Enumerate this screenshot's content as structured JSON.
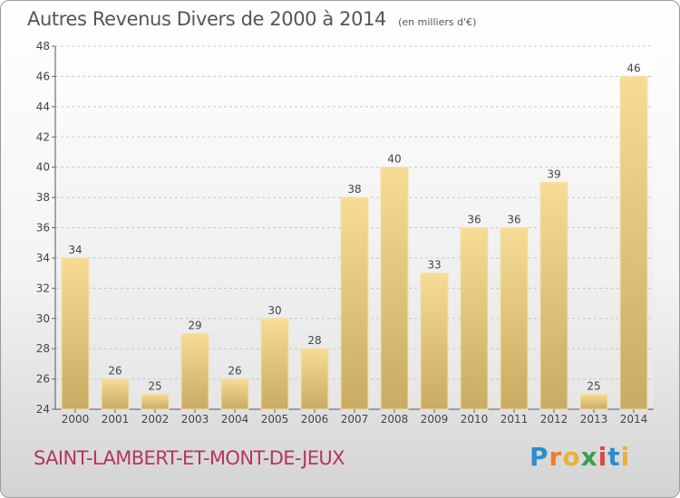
{
  "chart_data": {
    "type": "bar",
    "title": "Autres Revenus Divers de 2000 à 2014",
    "subtitle": "(en milliers d'€)",
    "categories": [
      "2000",
      "2001",
      "2002",
      "2003",
      "2004",
      "2005",
      "2006",
      "2007",
      "2008",
      "2009",
      "2010",
      "2011",
      "2012",
      "2013",
      "2014"
    ],
    "values": [
      34,
      26,
      25,
      29,
      26,
      30,
      28,
      38,
      40,
      33,
      36,
      36,
      39,
      25,
      46
    ],
    "ylim": [
      24,
      48
    ],
    "yticks": [
      24,
      26,
      28,
      30,
      32,
      34,
      36,
      38,
      40,
      42,
      44,
      46,
      48
    ],
    "grid": true,
    "bar_color": "#e8cf86"
  },
  "footer": {
    "place": "SAINT-LAMBERT-ET-MONT-DE-JEUX",
    "logo_letters": [
      "P",
      "r",
      "o",
      "x",
      "i",
      "t",
      "i"
    ]
  }
}
